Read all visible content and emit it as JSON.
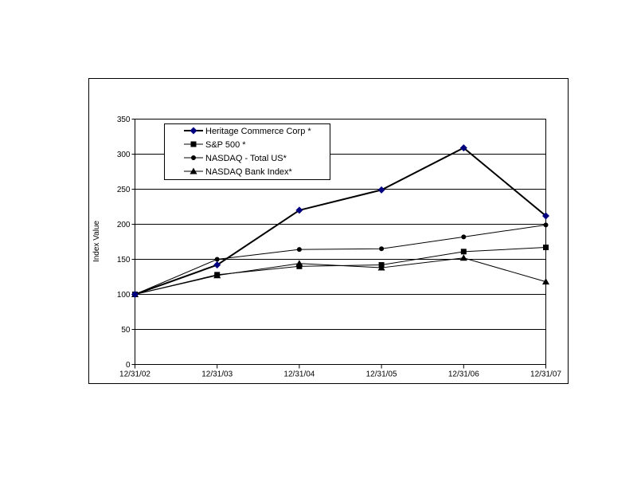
{
  "chart_data": {
    "type": "line",
    "title": "",
    "xlabel": "",
    "ylabel": "Index Value",
    "ylim": [
      0,
      350
    ],
    "yticks": [
      "0",
      "50",
      "100",
      "150",
      "200",
      "250",
      "300",
      "350"
    ],
    "grid": true,
    "legend_position": "top-left",
    "categories": [
      "12/31/02",
      "12/31/03",
      "12/31/04",
      "12/31/05",
      "12/31/06",
      "12/31/07"
    ],
    "series": [
      {
        "name": "Heritage Commerce Corp *",
        "marker": "diamond",
        "color": "#000080",
        "values": [
          100,
          142,
          220,
          249,
          309,
          212
        ]
      },
      {
        "name": "S&P  500 *",
        "marker": "square",
        "color": "#000000",
        "values": [
          100,
          128,
          140,
          142,
          161,
          167
        ]
      },
      {
        "name": "NASDAQ - Total US*",
        "marker": "circle",
        "color": "#000000",
        "values": [
          100,
          150,
          164,
          165,
          182,
          199
        ]
      },
      {
        "name": "NASDAQ Bank Index*",
        "marker": "triangle",
        "color": "#000000",
        "values": [
          100,
          127,
          144,
          138,
          152,
          118
        ]
      }
    ]
  }
}
